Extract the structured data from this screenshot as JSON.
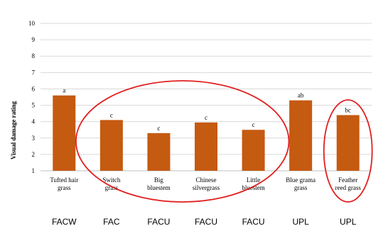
{
  "chart_data": {
    "type": "bar",
    "title": "",
    "xlabel": "",
    "ylabel": "Visual damage rating",
    "ylim": [
      1,
      10
    ],
    "yticks": [
      1,
      2,
      3,
      4,
      5,
      6,
      7,
      8,
      9,
      10
    ],
    "grid": true,
    "categories": [
      [
        "Tufted hair",
        "grass"
      ],
      [
        "Switch",
        "grass"
      ],
      [
        "Big",
        "bluestem"
      ],
      [
        "Chinese",
        "silvergrass"
      ],
      [
        "Little",
        "bluestem"
      ],
      [
        "Blue grama",
        "grass"
      ],
      [
        "Feather",
        "reed grass"
      ]
    ],
    "values": [
      5.6,
      4.1,
      3.3,
      3.95,
      3.5,
      5.3,
      4.4
    ],
    "significance_letters": [
      "a",
      "c",
      "c",
      "c",
      "c",
      "ab",
      "bc"
    ],
    "indicator_status": [
      "FACW",
      "FAC",
      "FACU",
      "FACU",
      "FACU",
      "UPL",
      "UPL"
    ],
    "colors": {
      "bar": "#C55A11",
      "grid": "#D9D9D9",
      "axis": "#BFBFBF",
      "text": "#000000",
      "highlight_ellipse": "#E02020"
    },
    "annotations": [
      {
        "type": "ellipse",
        "encloses_categories": [
          1,
          2,
          3,
          4
        ],
        "color": "#E02020"
      },
      {
        "type": "ellipse",
        "encloses_categories": [
          6
        ],
        "color": "#E02020"
      }
    ]
  }
}
